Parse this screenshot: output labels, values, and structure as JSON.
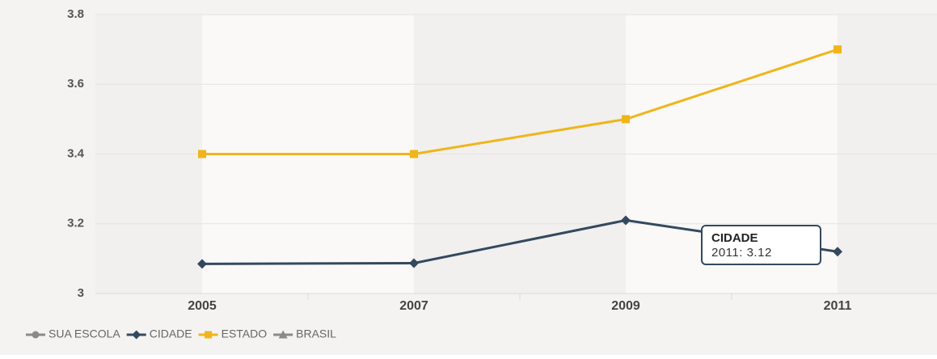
{
  "chart_data": {
    "type": "line",
    "categories": [
      "2005",
      "2007",
      "2009",
      "2011"
    ],
    "series": [
      {
        "name": "SUA ESCOLA",
        "color": "#8a8a8a",
        "marker": "circle",
        "values": [
          null,
          null,
          null,
          null
        ]
      },
      {
        "name": "CIDADE",
        "color": "#34495e",
        "marker": "diamond",
        "values": [
          3.085,
          3.087,
          3.21,
          3.12
        ]
      },
      {
        "name": "ESTADO",
        "color": "#f0b51b",
        "marker": "square",
        "values": [
          3.4,
          3.4,
          3.5,
          3.7
        ]
      },
      {
        "name": "BRASIL",
        "color": "#8a8a8a",
        "marker": "triangle",
        "values": [
          null,
          null,
          null,
          null
        ]
      }
    ],
    "ylim": [
      3,
      3.8
    ],
    "yticks": [
      3,
      3.2,
      3.4,
      3.6,
      3.8
    ],
    "grid": true,
    "legend": "bottom-left",
    "tooltip": {
      "title": "CIDADE",
      "text": "2011: 3.12"
    }
  }
}
